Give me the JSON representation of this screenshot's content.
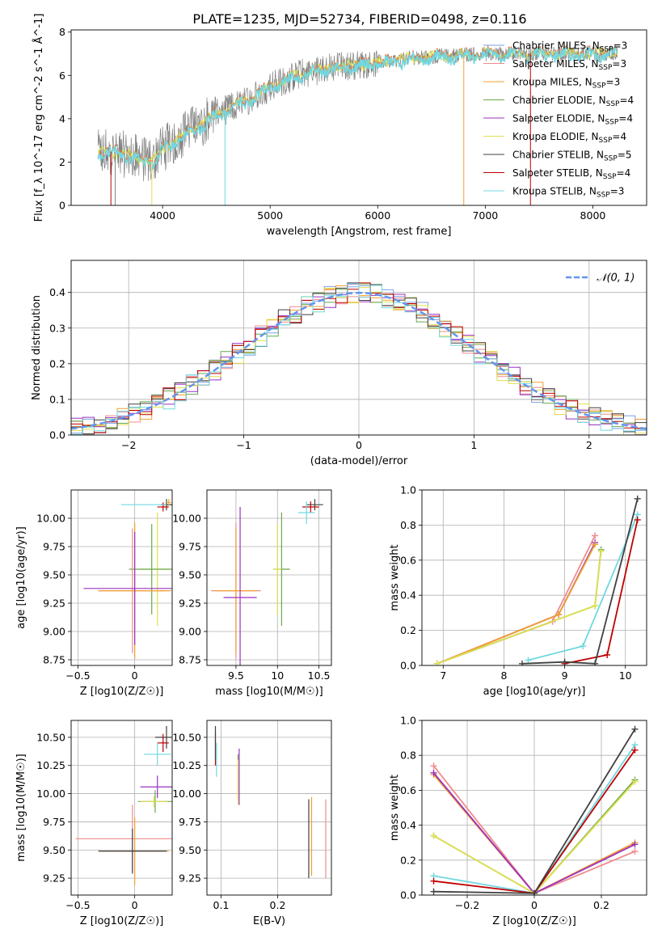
{
  "page": {
    "title": "PLATE=1235, MJD=52734, FIBERID=0498, z=0.116"
  },
  "model_colors": [
    "#7b9fe0",
    "#f08c8c",
    "#f0a030",
    "#6aa84f",
    "#9b30c0",
    "#e0e050",
    "#404040",
    "#c00000",
    "#70d8e0"
  ],
  "chart_data": [
    {
      "id": "spectrum",
      "type": "line",
      "title": "PLATE=1235, MJD=52734, FIBERID=0498, z=0.116",
      "xlabel": "wavelength [Angstrom, rest frame]",
      "ylabel": "Flux [f_λ 10^-17 erg cm^-2 s^-1 Å^-1]",
      "xlim": [
        3150,
        8500
      ],
      "ylim": [
        0,
        8.1
      ],
      "xticks": [
        4000,
        5000,
        6000,
        7000,
        8000
      ],
      "yticks": [
        0,
        2,
        4,
        6,
        8
      ],
      "grid": false,
      "legend_position": "top-right",
      "legend": [
        {
          "name": "Chabrier MILES",
          "nssp": 3,
          "color": "#7b9fe0"
        },
        {
          "name": "Salpeter MILES",
          "nssp": 3,
          "color": "#f08c8c"
        },
        {
          "name": "Kroupa MILES",
          "nssp": 3,
          "color": "#f0a030"
        },
        {
          "name": "Chabrier ELODIE",
          "nssp": 4,
          "color": "#6aa84f"
        },
        {
          "name": "Salpeter ELODIE",
          "nssp": 4,
          "color": "#9b30c0"
        },
        {
          "name": "Kroupa ELODIE",
          "nssp": 4,
          "color": "#e0e050"
        },
        {
          "name": "Chabrier STELIB",
          "nssp": 5,
          "color": "#404040"
        },
        {
          "name": "Salpeter STELIB",
          "nssp": 4,
          "color": "#c00000"
        },
        {
          "name": "Kroupa STELIB",
          "nssp": 3,
          "color": "#70d8e0"
        }
      ],
      "continuum": {
        "x": [
          3400,
          3500,
          3700,
          3900,
          4000,
          4200,
          4500,
          4800,
          5000,
          5300,
          5600,
          6000,
          6300,
          6600,
          7000,
          7500,
          8000,
          8200
        ],
        "y": [
          2.4,
          2.5,
          2.3,
          2.0,
          2.6,
          3.3,
          4.2,
          4.9,
          5.5,
          6.1,
          6.4,
          6.6,
          6.8,
          6.9,
          7.0,
          7.0,
          7.0,
          7.0
        ]
      }
    },
    {
      "id": "residuals",
      "type": "line",
      "xlabel": "(data-model)/error",
      "ylabel": "Normed distribution",
      "xlim": [
        -2.5,
        2.5
      ],
      "ylim": [
        0,
        0.49
      ],
      "xticks": [
        -2,
        -1,
        0,
        1,
        2
      ],
      "yticks": [
        0.0,
        0.1,
        0.2,
        0.3,
        0.4
      ],
      "grid": true,
      "legend_position": "top-right",
      "legend": [
        {
          "name": "𝒩(0, 1)",
          "color": "#6495ed"
        }
      ]
    },
    {
      "id": "age-vs-Z",
      "type": "scatter",
      "xlabel": "Z [log10(Z/Z☉)]",
      "ylabel": "age [log10(age/yr)]",
      "xlim": [
        -0.56,
        0.33
      ],
      "ylim": [
        8.7,
        10.25
      ],
      "xticks": [
        -0.5,
        0.0
      ],
      "yticks": [
        8.75,
        9.0,
        9.25,
        9.5,
        9.75,
        10.0
      ],
      "grid": true,
      "points": [
        {
          "x": 0.28,
          "y": 10.12,
          "xerr": 0.05,
          "yerr": 0.05,
          "color": "#404040"
        },
        {
          "x": 0.25,
          "y": 10.1,
          "xerr": 0.05,
          "yerr": 0.04,
          "color": "#c00000"
        },
        {
          "x": 0.3,
          "y": 10.14,
          "xerr": 0.02,
          "yerr": 0.03,
          "color": "#f0a030"
        },
        {
          "x": 0.2,
          "y": 9.55,
          "xerr": 0.15,
          "yerr": 0.5,
          "color": "#e0e050"
        },
        {
          "x": 0.15,
          "y": 9.55,
          "xerr": 0.2,
          "yerr": 0.4,
          "color": "#6aa84f"
        },
        {
          "x": 0.08,
          "y": 10.12,
          "xerr": 0.2,
          "yerr": 0.0,
          "color": "#70d8e0"
        },
        {
          "x": -0.02,
          "y": 9.36,
          "xerr": 0.3,
          "yerr": 0.55,
          "color": "#f08c8c"
        },
        {
          "x": 0.0,
          "y": 9.36,
          "xerr": 0.32,
          "yerr": 0.6,
          "color": "#f0a030"
        },
        {
          "x": 0.0,
          "y": 9.38,
          "xerr": 0.45,
          "yerr": 0.5,
          "color": "#9b30c0"
        }
      ]
    },
    {
      "id": "age-vs-mass",
      "type": "scatter",
      "xlabel": "mass [log10(M/M☉)]",
      "ylabel": "",
      "xlim": [
        9.15,
        10.65
      ],
      "ylim": [
        8.7,
        10.25
      ],
      "xticks": [
        9.5,
        10.0,
        10.5
      ],
      "yticks": [
        8.75,
        9.0,
        9.25,
        9.5,
        9.75,
        10.0
      ],
      "grid": true,
      "points": [
        {
          "x": 10.45,
          "y": 10.12,
          "xerr": 0.1,
          "yerr": 0.05,
          "color": "#404040"
        },
        {
          "x": 10.4,
          "y": 10.1,
          "xerr": 0.1,
          "yerr": 0.05,
          "color": "#c00000"
        },
        {
          "x": 10.35,
          "y": 10.05,
          "xerr": 0.1,
          "yerr": 0.1,
          "color": "#70d8e0"
        },
        {
          "x": 10.05,
          "y": 9.55,
          "xerr": 0.1,
          "yerr": 0.5,
          "color": "#6aa84f"
        },
        {
          "x": 10.0,
          "y": 9.55,
          "xerr": 0.05,
          "yerr": 0.4,
          "color": "#e0e050"
        },
        {
          "x": 9.5,
          "y": 9.36,
          "xerr": 0.3,
          "yerr": 0.6,
          "color": "#f08c8c"
        },
        {
          "x": 9.5,
          "y": 9.36,
          "xerr": 0.25,
          "yerr": 0.55,
          "color": "#f0a030"
        },
        {
          "x": 9.55,
          "y": 9.3,
          "xerr": 0.2,
          "yerr": 0.8,
          "color": "#9b30c0"
        }
      ]
    },
    {
      "id": "mass-weight-vs-age",
      "type": "line",
      "xlabel": "age [log10(age/yr)]",
      "ylabel": "mass weight",
      "xlim": [
        6.65,
        10.35
      ],
      "ylim": [
        0,
        1.0
      ],
      "xticks": [
        7,
        8,
        9,
        10
      ],
      "yticks": [
        0.0,
        0.2,
        0.4,
        0.6,
        0.8,
        1.0
      ],
      "grid": true,
      "series": [
        {
          "color": "#f08c8c",
          "x": [
            6.9,
            8.8,
            9.5
          ],
          "y": [
            0.01,
            0.25,
            0.74
          ]
        },
        {
          "color": "#9b30c0",
          "x": [
            6.9,
            8.9,
            9.5
          ],
          "y": [
            0.01,
            0.29,
            0.7
          ]
        },
        {
          "color": "#f0a030",
          "x": [
            6.9,
            8.9,
            9.5
          ],
          "y": [
            0.01,
            0.29,
            0.69
          ]
        },
        {
          "color": "#6aa84f",
          "x": [
            6.9,
            9.5,
            9.6
          ],
          "y": [
            0.01,
            0.34,
            0.66
          ]
        },
        {
          "color": "#e0e050",
          "x": [
            6.9,
            9.5,
            9.6
          ],
          "y": [
            0.01,
            0.34,
            0.65
          ]
        },
        {
          "color": "#70d8e0",
          "x": [
            8.4,
            9.3,
            10.2
          ],
          "y": [
            0.03,
            0.11,
            0.86
          ]
        },
        {
          "color": "#c00000",
          "x": [
            9.0,
            9.7,
            10.2
          ],
          "y": [
            0.01,
            0.06,
            0.83
          ]
        },
        {
          "color": "#404040",
          "x": [
            8.3,
            9.0,
            9.5,
            10.2
          ],
          "y": [
            0.01,
            0.02,
            0.01,
            0.95
          ]
        }
      ]
    },
    {
      "id": "mass-vs-Z",
      "type": "scatter",
      "xlabel": "Z [log10(Z/Z☉)]",
      "ylabel": "mass [log10(M/M☉)]",
      "xlim": [
        -0.56,
        0.33
      ],
      "ylim": [
        9.1,
        10.65
      ],
      "xticks": [
        -0.5,
        0.0
      ],
      "yticks": [
        9.25,
        9.5,
        9.75,
        10.0,
        10.25,
        10.5
      ],
      "grid": true,
      "points": [
        {
          "x": 0.28,
          "y": 10.5,
          "xerr": 0.1,
          "yerr": 0.1,
          "color": "#404040"
        },
        {
          "x": 0.25,
          "y": 10.45,
          "xerr": 0.05,
          "yerr": 0.08,
          "color": "#c00000"
        },
        {
          "x": 0.2,
          "y": 10.35,
          "xerr": 0.12,
          "yerr": 0.1,
          "color": "#70d8e0"
        },
        {
          "x": 0.2,
          "y": 10.06,
          "xerr": 0.15,
          "yerr": 0.1,
          "color": "#9b30c0"
        },
        {
          "x": 0.18,
          "y": 9.93,
          "xerr": 0.15,
          "yerr": 0.1,
          "color": "#6aa84f"
        },
        {
          "x": 0.17,
          "y": 9.93,
          "xerr": 0.12,
          "yerr": 0.05,
          "color": "#e0e050"
        },
        {
          "x": -0.02,
          "y": 9.6,
          "xerr": 0.5,
          "yerr": 0.3,
          "color": "#f08c8c"
        },
        {
          "x": 0.0,
          "y": 9.49,
          "xerr": 0.3,
          "yerr": 0.3,
          "color": "#f0a030"
        },
        {
          "x": -0.02,
          "y": 9.49,
          "xerr": 0.3,
          "yerr": 0.2,
          "color": "#404040"
        }
      ]
    },
    {
      "id": "mass-vs-ebv",
      "type": "scatter",
      "xlabel": "E(B-V)",
      "ylabel": "",
      "xlim": [
        0.075,
        0.295
      ],
      "ylim": [
        9.1,
        10.65
      ],
      "xticks": [
        0.1,
        0.2
      ],
      "yticks": [
        9.25,
        9.5,
        9.75,
        10.0,
        10.25,
        10.5
      ],
      "grid": true,
      "points": [
        {
          "x": 0.09,
          "y": 10.4,
          "xerr": 0,
          "yerr": 0.15,
          "color": "#c00000"
        },
        {
          "x": 0.09,
          "y": 10.45,
          "xerr": 0,
          "yerr": 0.15,
          "color": "#404040"
        },
        {
          "x": 0.092,
          "y": 10.3,
          "xerr": 0,
          "yerr": 0.15,
          "color": "#70d8e0"
        },
        {
          "x": 0.13,
          "y": 10.15,
          "xerr": 0,
          "yerr": 0.2,
          "color": "#6aa84f"
        },
        {
          "x": 0.132,
          "y": 10.15,
          "xerr": 0,
          "yerr": 0.25,
          "color": "#9b30c0"
        },
        {
          "x": 0.13,
          "y": 10.1,
          "xerr": 0,
          "yerr": 0.2,
          "color": "#e0e050"
        },
        {
          "x": 0.255,
          "y": 9.6,
          "xerr": 0,
          "yerr": 0.35,
          "color": "#404040"
        },
        {
          "x": 0.26,
          "y": 9.62,
          "xerr": 0,
          "yerr": 0.35,
          "color": "#f0a030"
        },
        {
          "x": 0.285,
          "y": 9.6,
          "xerr": 0,
          "yerr": 0.35,
          "color": "#f08c8c"
        }
      ]
    },
    {
      "id": "mass-weight-vs-Z",
      "type": "line",
      "xlabel": "Z [log10(Z/Z☉)]",
      "ylabel": "mass weight",
      "xlim": [
        -0.335,
        0.335
      ],
      "ylim": [
        0,
        1.0
      ],
      "xticks": [
        -0.2,
        0.0,
        0.2
      ],
      "yticks": [
        0.0,
        0.2,
        0.4,
        0.6,
        0.8,
        1.0
      ],
      "grid": true,
      "series": [
        {
          "color": "#f08c8c",
          "x": [
            -0.3,
            0.0,
            0.3
          ],
          "y": [
            0.74,
            0.01,
            0.25
          ]
        },
        {
          "color": "#f0a030",
          "x": [
            -0.3,
            0.0,
            0.3
          ],
          "y": [
            0.69,
            0.01,
            0.3
          ]
        },
        {
          "color": "#9b30c0",
          "x": [
            -0.3,
            0.0,
            0.3
          ],
          "y": [
            0.7,
            0.01,
            0.29
          ]
        },
        {
          "color": "#6aa84f",
          "x": [
            -0.3,
            0.0,
            0.3
          ],
          "y": [
            0.34,
            0.01,
            0.66
          ]
        },
        {
          "color": "#e0e050",
          "x": [
            -0.3,
            0.0,
            0.3
          ],
          "y": [
            0.34,
            0.01,
            0.65
          ]
        },
        {
          "color": "#70d8e0",
          "x": [
            -0.3,
            0.0,
            0.3
          ],
          "y": [
            0.11,
            0.01,
            0.86
          ]
        },
        {
          "color": "#c00000",
          "x": [
            -0.3,
            0.0,
            0.3
          ],
          "y": [
            0.08,
            0.01,
            0.83
          ]
        },
        {
          "color": "#404040",
          "x": [
            -0.3,
            0.0,
            0.3
          ],
          "y": [
            0.02,
            0.01,
            0.95
          ]
        }
      ]
    }
  ]
}
